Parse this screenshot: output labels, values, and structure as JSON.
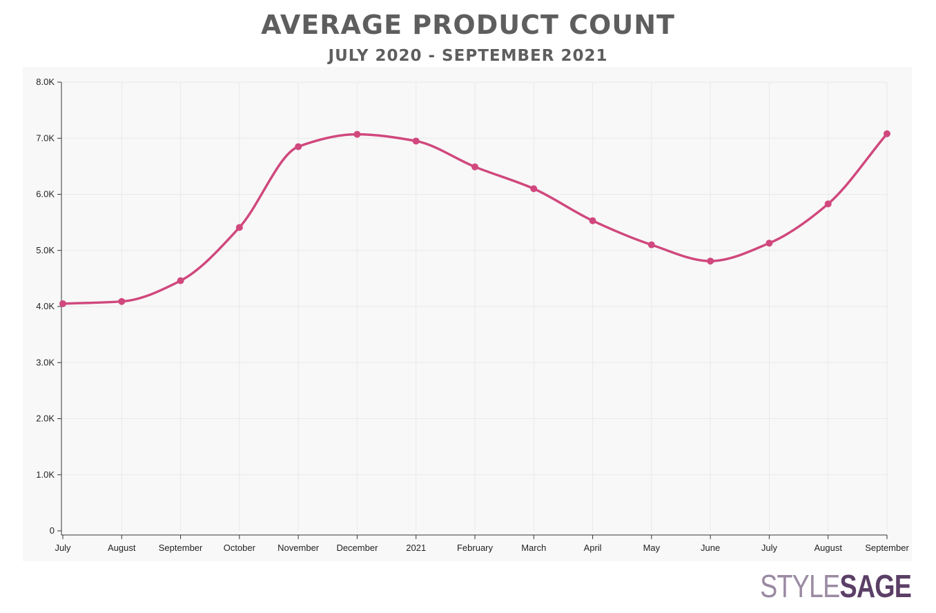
{
  "chart_data": {
    "type": "line",
    "title": "AVERAGE PRODUCT COUNT",
    "subtitle": "JULY 2020 - SEPTEMBER 2021",
    "categories": [
      "July",
      "August",
      "September",
      "October",
      "November",
      "December",
      "2021",
      "February",
      "March",
      "April",
      "May",
      "June",
      "July",
      "August",
      "September"
    ],
    "series": [
      {
        "values": [
          4050,
          4090,
          4460,
          5410,
          6850,
          7070,
          6950,
          6490,
          6100,
          5530,
          5100,
          4810,
          5130,
          5830,
          7080
        ]
      }
    ],
    "yticks": [
      "0",
      "1.0K",
      "2.0K",
      "3.0K",
      "4.0K",
      "5.0K",
      "6.0K",
      "7.0K",
      "8.0K"
    ],
    "ylim": [
      0,
      8000
    ],
    "grid": true,
    "line_color": "#d0487d",
    "background_color": "#f8f8f8"
  },
  "brand": {
    "part1": "STYLE",
    "part2": "SAGE"
  }
}
